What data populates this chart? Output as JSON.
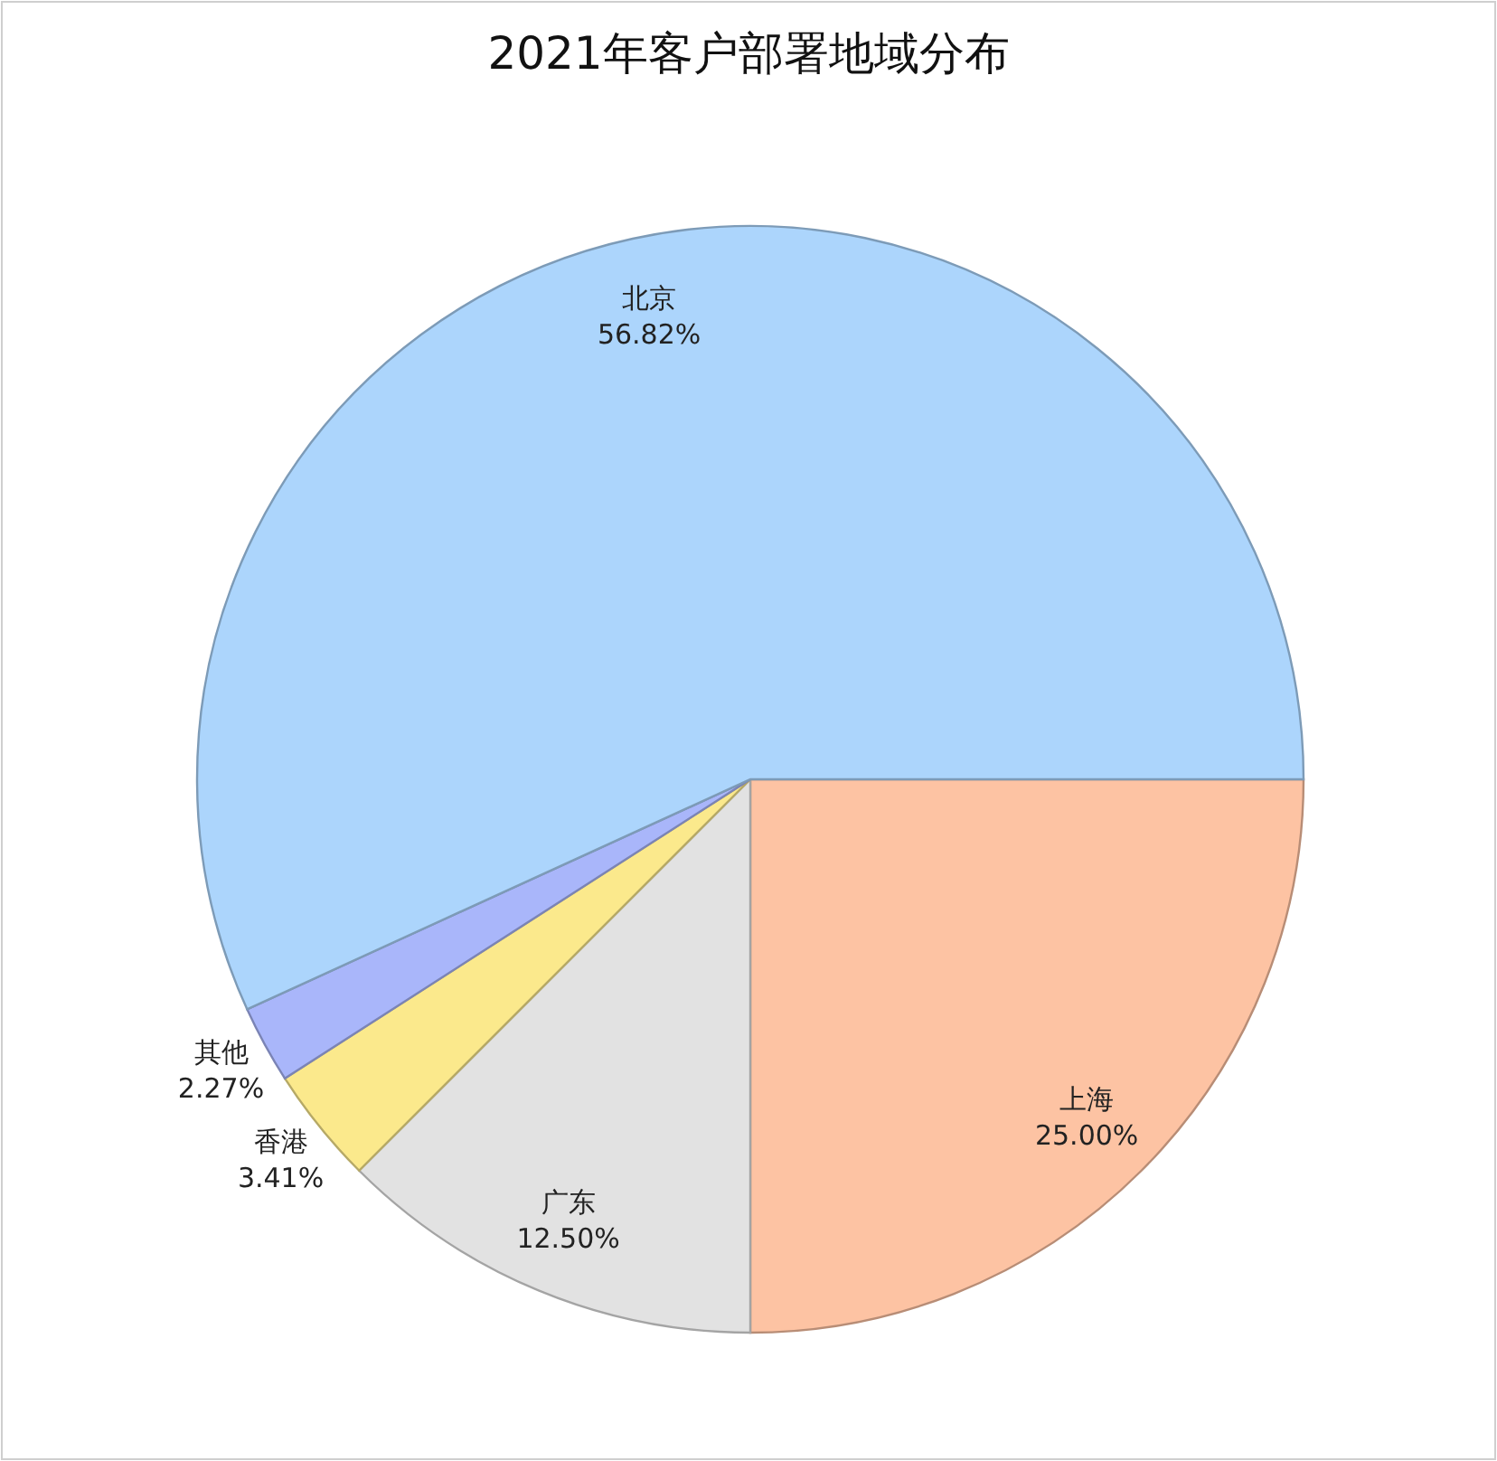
{
  "chart_data": {
    "type": "pie",
    "title": "2021年客户部署地域分布",
    "categories": [
      "上海",
      "广东",
      "香港",
      "其他",
      "北京"
    ],
    "values": [
      25.0,
      12.5,
      3.41,
      2.27,
      56.82
    ],
    "value_labels": [
      "25.00%",
      "12.50%",
      "3.41%",
      "2.27%",
      "56.82%"
    ],
    "colors": [
      "#fdc3a3",
      "#e2e2e2",
      "#fbe98c",
      "#a9b6fa",
      "#acd5fc"
    ]
  }
}
